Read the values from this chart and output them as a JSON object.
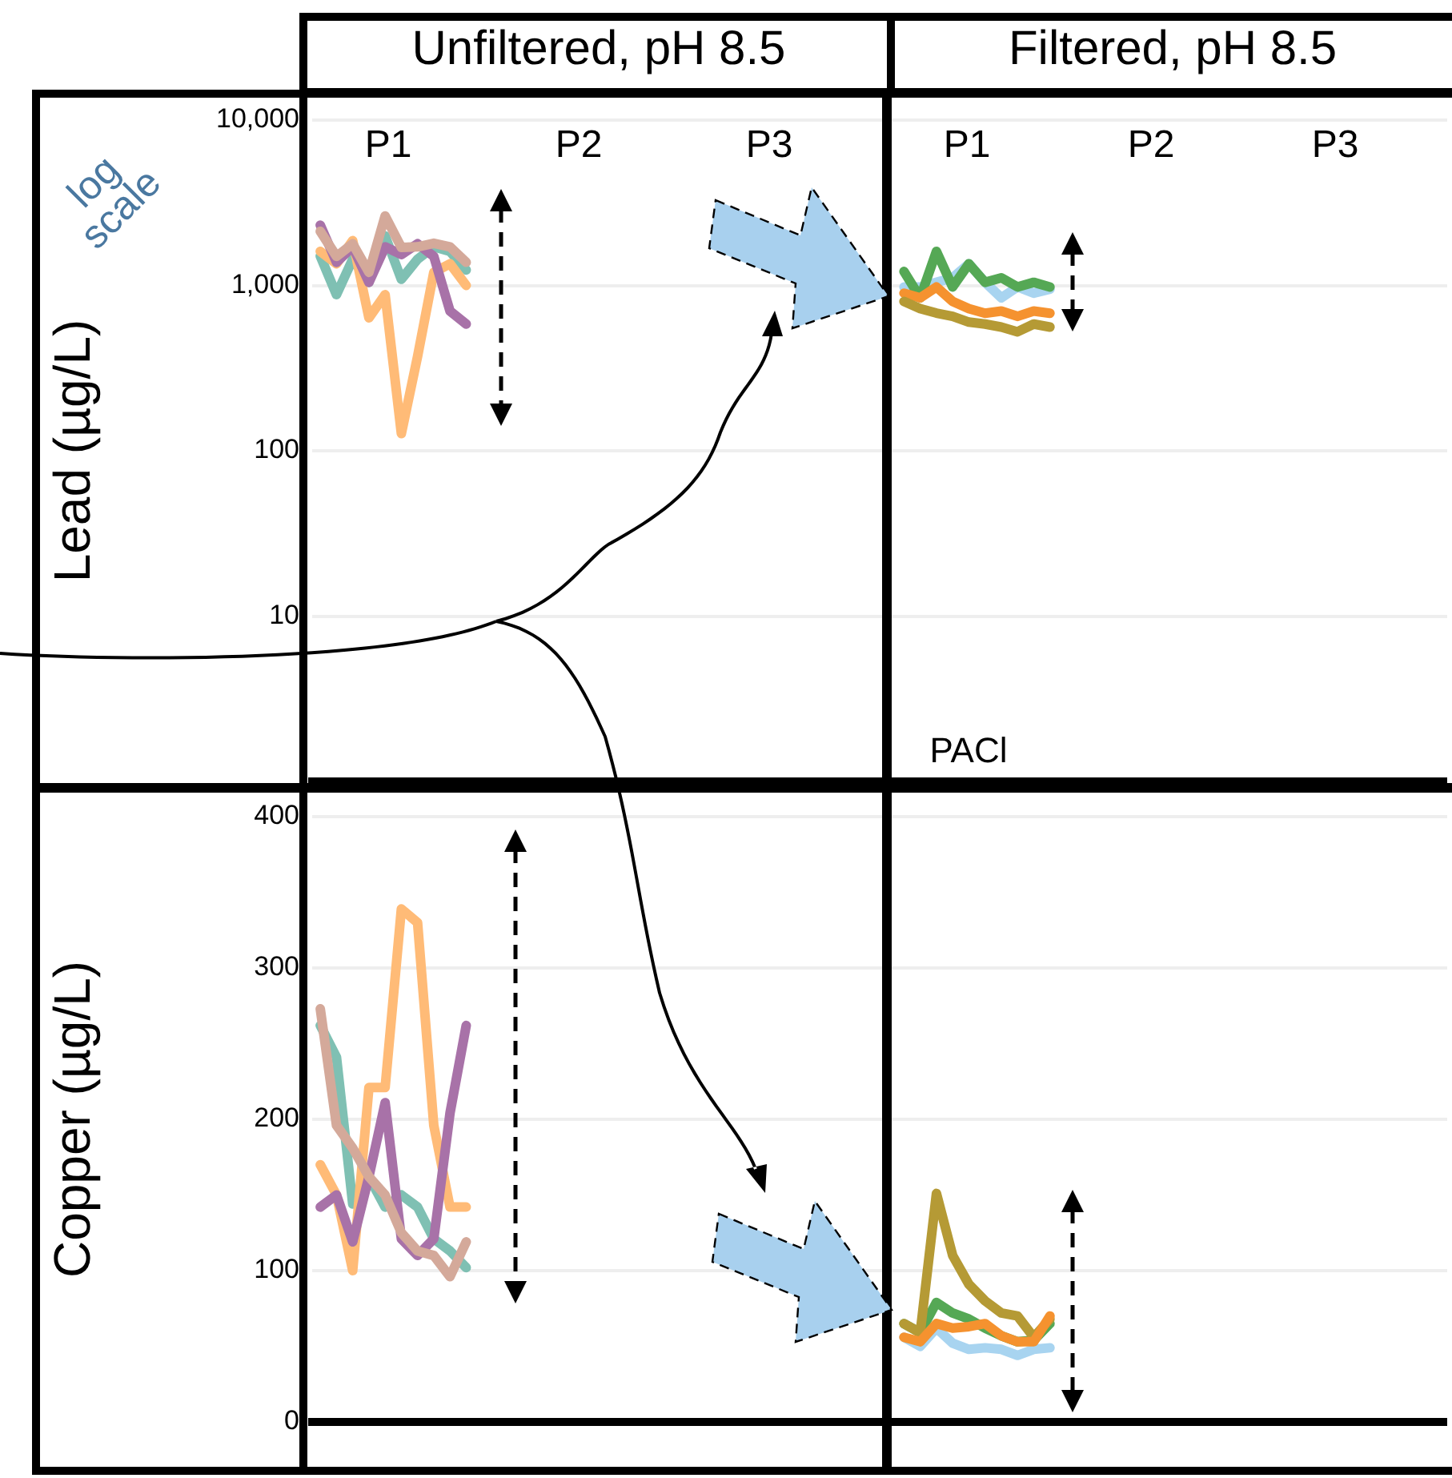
{
  "chart_data": [
    {
      "type": "line",
      "ylabel": "Lead (µg/L)",
      "log": "y",
      "ylim": [
        1,
        10000
      ],
      "yticks": [
        {
          "value": 10,
          "label": "10"
        },
        {
          "value": 100,
          "label": "100"
        },
        {
          "value": 1000,
          "label": "1,000"
        },
        {
          "value": 10000,
          "label": "10,000"
        }
      ],
      "grid": "y",
      "legend": false,
      "marker": "none",
      "tick_labels": "y",
      "annotations": [
        "Unfiltered, pH 8.5",
        "Filtered, pH 8.5",
        "P1",
        "P2",
        "P3",
        "P1",
        "P2",
        "P3",
        "log scale",
        "PACl"
      ],
      "categories": [
        null,
        null,
        null,
        null,
        null,
        null,
        null,
        null,
        null,
        null,
        null,
        null,
        null,
        null,
        null,
        null,
        null,
        null,
        null,
        null,
        null,
        null,
        null,
        null,
        null,
        null,
        null,
        null,
        null,
        null,
        null,
        null,
        null,
        null,
        null,
        null,
        null,
        null,
        null,
        null,
        null,
        null,
        null,
        null,
        null,
        null,
        null,
        null,
        null,
        null,
        null,
        null,
        null,
        null,
        null,
        null,
        null,
        null,
        null,
        null,
        null,
        null,
        null,
        null,
        null,
        null,
        null,
        null,
        null,
        null
      ],
      "series": [
        {
          "color": "#d4a99a",
          "values": [
            2125,
            1500,
            1786,
            1200,
            2630,
            1700,
            1712,
            1800,
            1712,
            1380,
            null,
            null,
            null,
            null,
            null,
            null,
            null,
            null,
            null,
            null,
            null,
            null,
            null,
            null,
            null,
            null,
            null,
            null,
            null,
            null,
            null,
            null,
            null,
            null,
            null,
            null,
            null,
            null,
            null,
            null,
            null,
            null,
            null,
            null,
            null,
            null,
            null,
            null,
            null,
            null,
            null,
            null,
            null,
            null,
            null,
            null,
            null,
            null,
            null,
            null,
            null,
            null,
            null,
            null,
            null,
            null,
            null,
            null,
            null,
            null
          ]
        },
        {
          "color": "#a872a8",
          "values": [
            2315,
            1380,
            1712,
            1044,
            1712,
            1538,
            1786,
            1500,
            700,
            584,
            null,
            null,
            null,
            null,
            null,
            null,
            null,
            null,
            null,
            null,
            null,
            null,
            null,
            null,
            null,
            null,
            null,
            null,
            null,
            null,
            null,
            null,
            null,
            null,
            null,
            null,
            null,
            null,
            null,
            null,
            null,
            null,
            null,
            null,
            null,
            null,
            null,
            null,
            null,
            null,
            null,
            null,
            null,
            null,
            null,
            null,
            null,
            null,
            null,
            null,
            null,
            null,
            null,
            null,
            null,
            null,
            null,
            null,
            null,
            null
          ]
        },
        {
          "color": "#ffbb77",
          "values": [
            1607,
            1352,
            1866,
            637,
            879,
            127,
            372,
            1200,
            1352,
            1000,
            null,
            null,
            null,
            null,
            null,
            null,
            null,
            null,
            null,
            null,
            null,
            null,
            null,
            null,
            null,
            null,
            null,
            null,
            null,
            null,
            null,
            null,
            null,
            null,
            null,
            null,
            null,
            null,
            null,
            null,
            null,
            null,
            null,
            null,
            null,
            null,
            null,
            null,
            null,
            null,
            null,
            null,
            null,
            null,
            null,
            null,
            null,
            null,
            null,
            null,
            null,
            null,
            null,
            null,
            null,
            null,
            null,
            null,
            null,
            null
          ]
        },
        {
          "color": "#7fc0b3",
          "values": [
            1505,
            879,
            1442,
            1044,
            1990,
            1090,
            1442,
            1712,
            1605,
            1240,
            null,
            null,
            null,
            null,
            null,
            null,
            null,
            null,
            null,
            null,
            null,
            null,
            null,
            null,
            null,
            null,
            null,
            null,
            null,
            null,
            null,
            null,
            null,
            null,
            null,
            null,
            null,
            null,
            null,
            null,
            null,
            null,
            null,
            null,
            null,
            null,
            null,
            null,
            null,
            null,
            null,
            null,
            null,
            null,
            null,
            null,
            null,
            null,
            null,
            null,
            null,
            null,
            null,
            null,
            null,
            null,
            null,
            null,
            null,
            null
          ]
        },
        {
          "color": "#b59a35",
          "values": [
            null,
            null,
            null,
            null,
            null,
            null,
            null,
            null,
            null,
            null,
            null,
            null,
            null,
            null,
            null,
            null,
            null,
            null,
            null,
            null,
            null,
            null,
            null,
            null,
            null,
            null,
            null,
            null,
            null,
            null,
            null,
            null,
            null,
            null,
            null,
            null,
            800,
            724,
            680,
            650,
            600,
            584,
            560,
            524,
            584,
            560,
            null,
            null,
            null,
            null,
            null,
            null,
            null,
            null,
            null,
            null,
            null,
            null,
            null,
            null,
            null,
            null,
            null,
            null,
            null,
            null,
            null,
            null,
            null,
            null
          ]
        },
        {
          "color": "#f5922f",
          "values": [
            null,
            null,
            null,
            null,
            null,
            null,
            null,
            null,
            null,
            null,
            null,
            null,
            null,
            null,
            null,
            null,
            null,
            null,
            null,
            null,
            null,
            null,
            null,
            null,
            null,
            null,
            null,
            null,
            null,
            null,
            null,
            null,
            null,
            null,
            null,
            null,
            898,
            842,
            979,
            800,
            724,
            679,
            700,
            650,
            700,
            679,
            null,
            null,
            null,
            null,
            null,
            null,
            null,
            null,
            null,
            null,
            null,
            null,
            null,
            null,
            null,
            null,
            null,
            null,
            null,
            null,
            null,
            null,
            null,
            null
          ]
        },
        {
          "color": "#55a855",
          "values": [
            null,
            null,
            null,
            null,
            null,
            null,
            null,
            null,
            null,
            null,
            null,
            null,
            null,
            null,
            null,
            null,
            null,
            null,
            null,
            null,
            null,
            null,
            null,
            null,
            null,
            null,
            null,
            null,
            null,
            null,
            null,
            null,
            null,
            null,
            null,
            null,
            1214,
            842,
            1606,
            979,
            1351,
            1044,
            1113,
            979,
            1044,
            979,
            null,
            null,
            null,
            null,
            null,
            null,
            null,
            null,
            null,
            null,
            null,
            null,
            null,
            null,
            null,
            null,
            null,
            null,
            null,
            null,
            null,
            null,
            null,
            null
          ]
        },
        {
          "color": "#a8d4f0",
          "values": [
            null,
            null,
            null,
            null,
            null,
            null,
            null,
            null,
            null,
            null,
            null,
            null,
            null,
            null,
            null,
            null,
            null,
            null,
            null,
            null,
            null,
            null,
            null,
            null,
            null,
            null,
            null,
            null,
            null,
            null,
            null,
            null,
            null,
            null,
            null,
            null,
            979,
            979,
            1044,
            1113,
            1351,
            1044,
            842,
            979,
            898,
            950,
            null,
            null,
            null,
            null,
            null,
            null,
            null,
            null,
            null,
            null,
            null,
            null,
            null,
            null,
            null,
            null,
            null,
            null,
            null,
            null,
            null,
            null,
            null,
            null
          ]
        }
      ]
    },
    {
      "type": "line",
      "ylabel": "Copper (µg/L)",
      "ylim": [
        0,
        400
      ],
      "yticks": [
        0,
        100,
        200,
        300,
        400
      ],
      "grid": "y",
      "legend": false,
      "marker": "none",
      "tick_labels": "y",
      "categories": [
        null,
        null,
        null,
        null,
        null,
        null,
        null,
        null,
        null,
        null,
        null,
        null,
        null,
        null,
        null,
        null,
        null,
        null,
        null,
        null,
        null,
        null,
        null,
        null,
        null,
        null,
        null,
        null,
        null,
        null,
        null,
        null,
        null,
        null,
        null,
        null,
        null,
        null,
        null,
        null,
        null,
        null,
        null,
        null,
        null,
        null,
        null,
        null,
        null,
        null,
        null,
        null,
        null,
        null,
        null,
        null,
        null,
        null,
        null,
        null,
        null,
        null,
        null,
        null,
        null,
        null,
        null,
        null,
        null,
        null
      ],
      "series": [
        {
          "color": "#d4a99a",
          "values": [
            273,
            196,
            181,
            162,
            150,
            125,
            113,
            110,
            96,
            119,
            null,
            null,
            null,
            null,
            null,
            null,
            null,
            null,
            null,
            null,
            null,
            null,
            null,
            null,
            null,
            null,
            null,
            null,
            null,
            null,
            null,
            null,
            null,
            null,
            null,
            null,
            null,
            null,
            null,
            null,
            null,
            null,
            null,
            null,
            null,
            null,
            null,
            null,
            null,
            null,
            null,
            null,
            null,
            null,
            null,
            null,
            null,
            null,
            null,
            null,
            null,
            null,
            null,
            null,
            null,
            null,
            null,
            null,
            null,
            null
          ]
        },
        {
          "color": "#a872a8",
          "values": [
            142,
            150,
            119,
            162,
            211,
            121,
            110,
            121,
            204,
            262,
            null,
            null,
            null,
            null,
            null,
            null,
            null,
            null,
            null,
            null,
            null,
            null,
            null,
            null,
            null,
            null,
            null,
            null,
            null,
            null,
            null,
            null,
            null,
            null,
            null,
            null,
            null,
            null,
            null,
            null,
            null,
            null,
            null,
            null,
            null,
            null,
            null,
            null,
            null,
            null,
            null,
            null,
            null,
            null,
            null,
            null,
            null,
            null,
            null,
            null,
            null,
            null,
            null,
            null,
            null,
            null,
            null,
            null,
            null,
            null
          ]
        },
        {
          "color": "#ffbb77",
          "values": [
            170,
            150,
            100,
            221,
            221,
            339,
            330,
            196,
            142,
            142,
            null,
            null,
            null,
            null,
            null,
            null,
            null,
            null,
            null,
            null,
            null,
            null,
            null,
            null,
            null,
            null,
            null,
            null,
            null,
            null,
            null,
            null,
            null,
            null,
            null,
            null,
            null,
            null,
            null,
            null,
            null,
            null,
            null,
            null,
            null,
            null,
            null,
            null,
            null,
            null,
            null,
            null,
            null,
            null,
            null,
            null,
            null,
            null,
            null,
            null,
            null,
            null,
            null,
            null,
            null,
            null,
            null,
            null,
            null,
            null
          ]
        },
        {
          "color": "#7fc0b3",
          "values": [
            262,
            241,
            144,
            162,
            142,
            150,
            142,
            121,
            113,
            102,
            null,
            null,
            null,
            null,
            null,
            null,
            null,
            null,
            null,
            null,
            null,
            null,
            null,
            null,
            null,
            null,
            null,
            null,
            null,
            null,
            null,
            null,
            null,
            null,
            null,
            null,
            null,
            null,
            null,
            null,
            null,
            null,
            null,
            null,
            null,
            null,
            null,
            null,
            null,
            null,
            null,
            null,
            null,
            null,
            null,
            null,
            null,
            null,
            null,
            null,
            null,
            null,
            null,
            null,
            null,
            null,
            null,
            null,
            null,
            null
          ]
        },
        {
          "color": "#f5922f",
          "values": [
            null,
            null,
            null,
            null,
            null,
            null,
            null,
            null,
            null,
            null,
            null,
            null,
            null,
            null,
            null,
            null,
            null,
            null,
            null,
            null,
            null,
            null,
            null,
            null,
            null,
            null,
            null,
            null,
            null,
            null,
            null,
            null,
            null,
            null,
            null,
            null,
            56,
            53,
            65,
            62,
            63,
            65,
            57,
            53,
            53,
            70,
            null,
            null,
            null,
            null,
            null,
            null,
            null,
            null,
            null,
            null,
            null,
            null,
            null,
            null,
            null,
            null,
            null,
            null,
            null,
            null,
            null,
            null,
            null,
            null
          ]
        },
        {
          "color": "#a8d4f0",
          "values": [
            null,
            null,
            null,
            null,
            null,
            null,
            null,
            null,
            null,
            null,
            null,
            null,
            null,
            null,
            null,
            null,
            null,
            null,
            null,
            null,
            null,
            null,
            null,
            null,
            null,
            null,
            null,
            null,
            null,
            null,
            null,
            null,
            null,
            null,
            null,
            null,
            56,
            50,
            62,
            52,
            48,
            49,
            48,
            44,
            48,
            49,
            null,
            null,
            null,
            null,
            null,
            null,
            null,
            null,
            null,
            null,
            null,
            null,
            null,
            null,
            null,
            null,
            null,
            null,
            null,
            null,
            null,
            null,
            null,
            null
          ]
        },
        {
          "color": "#b59a35",
          "values": [
            null,
            null,
            null,
            null,
            null,
            null,
            null,
            null,
            null,
            null,
            null,
            null,
            null,
            null,
            null,
            null,
            null,
            null,
            null,
            null,
            null,
            null,
            null,
            null,
            null,
            null,
            null,
            null,
            null,
            null,
            null,
            null,
            null,
            null,
            null,
            null,
            65,
            59,
            151,
            110,
            91,
            80,
            72,
            70,
            56,
            68,
            null,
            null,
            null,
            null,
            null,
            null,
            null,
            null,
            null,
            null,
            null,
            null,
            null,
            null,
            null,
            null,
            null,
            null,
            null,
            null,
            null,
            null,
            null,
            null
          ]
        },
        {
          "color": "#55a855",
          "values": [
            null,
            null,
            null,
            null,
            null,
            null,
            null,
            null,
            null,
            null,
            null,
            null,
            null,
            null,
            null,
            null,
            null,
            null,
            null,
            null,
            null,
            null,
            null,
            null,
            null,
            null,
            null,
            null,
            null,
            null,
            null,
            null,
            null,
            null,
            null,
            null,
            65,
            59,
            79,
            72,
            68,
            62,
            57,
            53,
            54,
            65,
            null,
            null,
            null,
            null,
            null,
            null,
            null,
            null,
            null,
            null,
            null,
            null,
            null,
            null,
            null,
            null,
            null,
            null,
            null,
            null,
            null,
            null,
            null,
            null
          ]
        }
      ]
    }
  ]
}
